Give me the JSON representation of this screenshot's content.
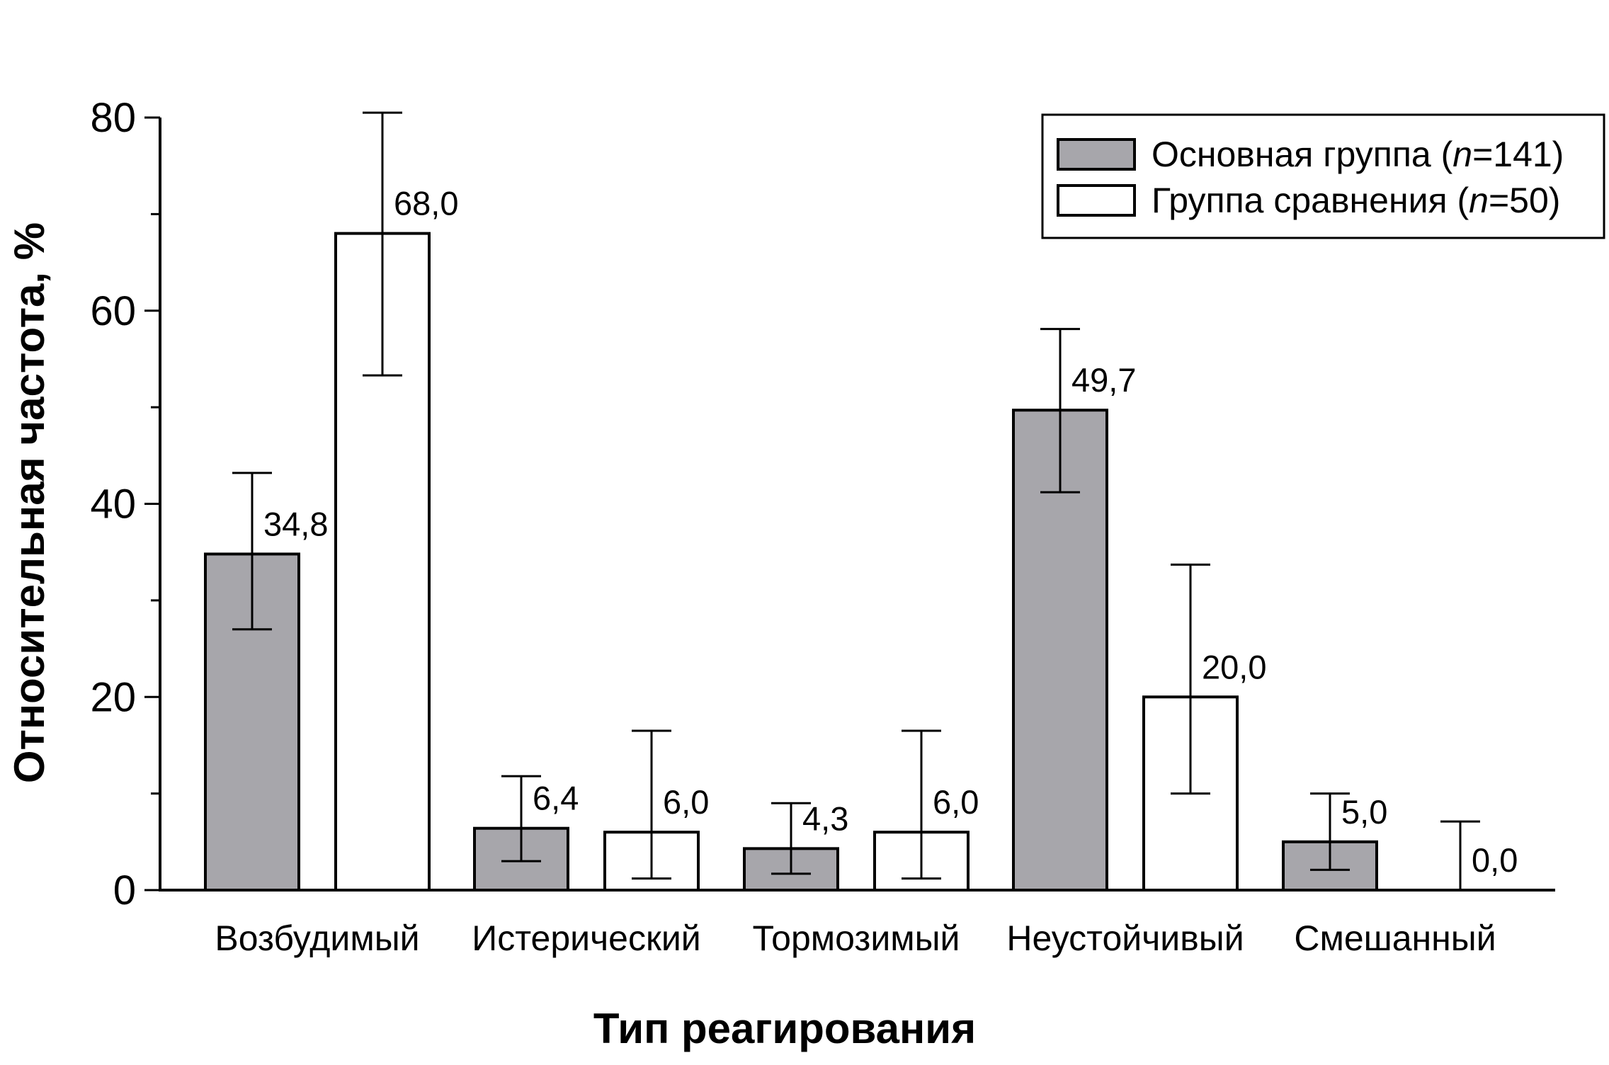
{
  "chart_data": {
    "type": "bar",
    "title": "",
    "xlabel": "Тип реагирования",
    "ylabel": "Относительная частота, %",
    "ylim": [
      0,
      80
    ],
    "yticks": [
      0,
      20,
      40,
      60,
      80
    ],
    "y_minor_step": 10,
    "categories": [
      "Возбудимый",
      "Истерический",
      "Тормозимый",
      "Неустойчивый",
      "Смешанный"
    ],
    "series": [
      {
        "name_prefix": "Основная группа (",
        "name_n": "n",
        "name_suffix": "=141)",
        "color": "#a7a6ab",
        "values": [
          34.8,
          6.4,
          4.3,
          49.7,
          5.0
        ],
        "labels": [
          "34,8",
          "6,4",
          "4,3",
          "49,7",
          "5,0"
        ],
        "ci_low": [
          27.0,
          3.0,
          1.7,
          41.2,
          2.1
        ],
        "ci_high": [
          43.2,
          11.8,
          9.0,
          58.1,
          10.0
        ]
      },
      {
        "name_prefix": "Группа сравнения (",
        "name_n": "n",
        "name_suffix": "=50)",
        "color": "#ffffff",
        "values": [
          68.0,
          6.0,
          6.0,
          20.0,
          0.0
        ],
        "labels": [
          "68,0",
          "6,0",
          "6,0",
          "20,0",
          "0,0"
        ],
        "ci_low": [
          53.3,
          1.2,
          1.2,
          10.0,
          0.0
        ],
        "ci_high": [
          80.5,
          16.5,
          16.5,
          33.7,
          7.1
        ]
      }
    ],
    "legend": "top-right",
    "error_bars": true,
    "grid": false
  }
}
